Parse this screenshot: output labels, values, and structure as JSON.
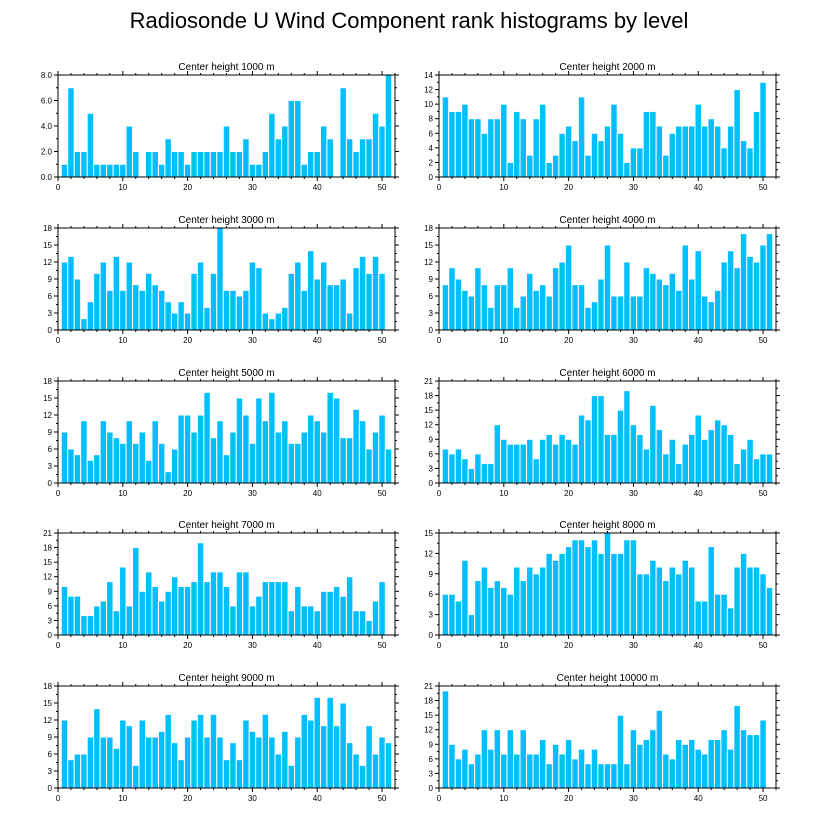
{
  "title": "Radiosonde U Wind Component rank histograms by level",
  "bar_color": "#00bfff",
  "bar_edge_color": "#ffffff",
  "axis_color": "#000000",
  "chart_data": [
    {
      "type": "bar",
      "title": "Center height 1000 m",
      "xlim": [
        0,
        52
      ],
      "xticks": [
        0,
        10,
        20,
        30,
        40,
        50
      ],
      "ylim": [
        0,
        8
      ],
      "yticks": [
        0,
        2,
        4,
        6,
        8
      ],
      "ytick_labels": [
        "0.0",
        "2.0",
        "4.0",
        "6.0",
        "8.0"
      ],
      "x": [
        1,
        2,
        3,
        4,
        5,
        6,
        7,
        8,
        9,
        10,
        11,
        12,
        13,
        14,
        15,
        16,
        17,
        18,
        19,
        20,
        21,
        22,
        23,
        24,
        25,
        26,
        27,
        28,
        29,
        30,
        31,
        32,
        33,
        34,
        35,
        36,
        37,
        38,
        39,
        40,
        41,
        42,
        43,
        44,
        45,
        46,
        47,
        48,
        49,
        50,
        51
      ],
      "values": [
        1,
        7,
        2,
        2,
        5,
        1,
        1,
        1,
        1,
        1,
        4,
        2,
        0,
        2,
        2,
        1,
        3,
        2,
        2,
        1,
        2,
        2,
        2,
        2,
        2,
        4,
        2,
        2,
        3,
        1,
        1,
        2,
        5,
        3,
        4,
        6,
        6,
        1,
        2,
        2,
        4,
        3,
        0,
        7,
        3,
        2,
        3,
        3,
        5,
        4,
        8
      ]
    },
    {
      "type": "bar",
      "title": "Center height 2000 m",
      "xlim": [
        0,
        52
      ],
      "xticks": [
        0,
        10,
        20,
        30,
        40,
        50
      ],
      "ylim": [
        0,
        14
      ],
      "yticks": [
        0,
        2,
        4,
        6,
        8,
        10,
        12,
        14
      ],
      "ytick_labels": [
        "0",
        "2",
        "4",
        "6",
        "8",
        "10",
        "12",
        "14"
      ],
      "x": [
        1,
        2,
        3,
        4,
        5,
        6,
        7,
        8,
        9,
        10,
        11,
        12,
        13,
        14,
        15,
        16,
        17,
        18,
        19,
        20,
        21,
        22,
        23,
        24,
        25,
        26,
        27,
        28,
        29,
        30,
        31,
        32,
        33,
        34,
        35,
        36,
        37,
        38,
        39,
        40,
        41,
        42,
        43,
        44,
        45,
        46,
        47,
        48,
        49,
        50,
        51
      ],
      "values": [
        11,
        9,
        9,
        10,
        8,
        8,
        6,
        8,
        8,
        10,
        2,
        9,
        8,
        3,
        8,
        10,
        2,
        3,
        6,
        7,
        5,
        11,
        3,
        6,
        5,
        7,
        10,
        6,
        2,
        4,
        4,
        9,
        9,
        7,
        3,
        6,
        7,
        7,
        7,
        10,
        7,
        8,
        7,
        4,
        7,
        12,
        5,
        4,
        9,
        13,
        0
      ]
    },
    {
      "type": "bar",
      "title": "Center height 3000 m",
      "xlim": [
        0,
        52
      ],
      "xticks": [
        0,
        10,
        20,
        30,
        40,
        50
      ],
      "ylim": [
        0,
        18
      ],
      "yticks": [
        0,
        3,
        6,
        9,
        12,
        15,
        18
      ],
      "ytick_labels": [
        "0",
        "3",
        "6",
        "9",
        "12",
        "15",
        "18"
      ],
      "x": [
        1,
        2,
        3,
        4,
        5,
        6,
        7,
        8,
        9,
        10,
        11,
        12,
        13,
        14,
        15,
        16,
        17,
        18,
        19,
        20,
        21,
        22,
        23,
        24,
        25,
        26,
        27,
        28,
        29,
        30,
        31,
        32,
        33,
        34,
        35,
        36,
        37,
        38,
        39,
        40,
        41,
        42,
        43,
        44,
        45,
        46,
        47,
        48,
        49,
        50,
        51
      ],
      "values": [
        12,
        13,
        9,
        2,
        5,
        10,
        12,
        7,
        13,
        7,
        12,
        8,
        7,
        10,
        8,
        7,
        5,
        3,
        5,
        3,
        10,
        12,
        4,
        10,
        18,
        7,
        7,
        6,
        7,
        12,
        11,
        3,
        2,
        3,
        4,
        10,
        12,
        7,
        14,
        9,
        12,
        8,
        8,
        9,
        3,
        11,
        13,
        10,
        13,
        10,
        0
      ]
    },
    {
      "type": "bar",
      "title": "Center height 4000 m",
      "xlim": [
        0,
        52
      ],
      "xticks": [
        0,
        10,
        20,
        30,
        40,
        50
      ],
      "ylim": [
        0,
        18
      ],
      "yticks": [
        0,
        3,
        6,
        9,
        12,
        15,
        18
      ],
      "ytick_labels": [
        "0",
        "3",
        "6",
        "9",
        "12",
        "15",
        "18"
      ],
      "x": [
        1,
        2,
        3,
        4,
        5,
        6,
        7,
        8,
        9,
        10,
        11,
        12,
        13,
        14,
        15,
        16,
        17,
        18,
        19,
        20,
        21,
        22,
        23,
        24,
        25,
        26,
        27,
        28,
        29,
        30,
        31,
        32,
        33,
        34,
        35,
        36,
        37,
        38,
        39,
        40,
        41,
        42,
        43,
        44,
        45,
        46,
        47,
        48,
        49,
        50,
        51
      ],
      "values": [
        8,
        11,
        9,
        7,
        6,
        11,
        8,
        4,
        8,
        8,
        11,
        4,
        6,
        10,
        7,
        8,
        6,
        11,
        12,
        15,
        8,
        8,
        4,
        5,
        9,
        15,
        6,
        6,
        12,
        6,
        6,
        11,
        10,
        9,
        8,
        10,
        7,
        15,
        9,
        14,
        6,
        5,
        7,
        12,
        14,
        11,
        17,
        13,
        12,
        15,
        17
      ]
    },
    {
      "type": "bar",
      "title": "Center height 5000 m",
      "xlim": [
        0,
        52
      ],
      "xticks": [
        0,
        10,
        20,
        30,
        40,
        50
      ],
      "ylim": [
        0,
        18
      ],
      "yticks": [
        0,
        3,
        6,
        9,
        12,
        15,
        18
      ],
      "ytick_labels": [
        "0",
        "3",
        "6",
        "9",
        "12",
        "15",
        "18"
      ],
      "x": [
        1,
        2,
        3,
        4,
        5,
        6,
        7,
        8,
        9,
        10,
        11,
        12,
        13,
        14,
        15,
        16,
        17,
        18,
        19,
        20,
        21,
        22,
        23,
        24,
        25,
        26,
        27,
        28,
        29,
        30,
        31,
        32,
        33,
        34,
        35,
        36,
        37,
        38,
        39,
        40,
        41,
        42,
        43,
        44,
        45,
        46,
        47,
        48,
        49,
        50,
        51
      ],
      "values": [
        9,
        6,
        5,
        11,
        4,
        5,
        11,
        9,
        8,
        7,
        11,
        7,
        9,
        4,
        11,
        7,
        2,
        6,
        12,
        12,
        9,
        12,
        16,
        8,
        11,
        5,
        9,
        15,
        12,
        7,
        15,
        11,
        16,
        9,
        11,
        7,
        7,
        9,
        12,
        11,
        9,
        16,
        15,
        8,
        8,
        13,
        11,
        6,
        9,
        12,
        6
      ]
    },
    {
      "type": "bar",
      "title": "Center height 6000 m",
      "xlim": [
        0,
        52
      ],
      "xticks": [
        0,
        10,
        20,
        30,
        40,
        50
      ],
      "ylim": [
        0,
        21
      ],
      "yticks": [
        0,
        3,
        6,
        9,
        12,
        15,
        18,
        21
      ],
      "ytick_labels": [
        "0",
        "3",
        "6",
        "9",
        "12",
        "15",
        "18",
        "21"
      ],
      "x": [
        1,
        2,
        3,
        4,
        5,
        6,
        7,
        8,
        9,
        10,
        11,
        12,
        13,
        14,
        15,
        16,
        17,
        18,
        19,
        20,
        21,
        22,
        23,
        24,
        25,
        26,
        27,
        28,
        29,
        30,
        31,
        32,
        33,
        34,
        35,
        36,
        37,
        38,
        39,
        40,
        41,
        42,
        43,
        44,
        45,
        46,
        47,
        48,
        49,
        50,
        51
      ],
      "values": [
        7,
        6,
        7,
        5,
        3,
        6,
        4,
        4,
        12,
        9,
        8,
        8,
        8,
        9,
        5,
        9,
        10,
        8,
        10,
        9,
        8,
        14,
        13,
        18,
        18,
        10,
        10,
        15,
        19,
        12,
        10,
        7,
        16,
        11,
        6,
        9,
        4,
        8,
        10,
        14,
        9,
        11,
        13,
        12,
        10,
        4,
        7,
        9,
        5,
        6,
        6
      ]
    },
    {
      "type": "bar",
      "title": "Center height 7000 m",
      "xlim": [
        0,
        52
      ],
      "xticks": [
        0,
        10,
        20,
        30,
        40,
        50
      ],
      "ylim": [
        0,
        21
      ],
      "yticks": [
        0,
        3,
        6,
        9,
        12,
        15,
        18,
        21
      ],
      "ytick_labels": [
        "0",
        "3",
        "6",
        "9",
        "12",
        "15",
        "18",
        "21"
      ],
      "x": [
        1,
        2,
        3,
        4,
        5,
        6,
        7,
        8,
        9,
        10,
        11,
        12,
        13,
        14,
        15,
        16,
        17,
        18,
        19,
        20,
        21,
        22,
        23,
        24,
        25,
        26,
        27,
        28,
        29,
        30,
        31,
        32,
        33,
        34,
        35,
        36,
        37,
        38,
        39,
        40,
        41,
        42,
        43,
        44,
        45,
        46,
        47,
        48,
        49,
        50,
        51
      ],
      "values": [
        10,
        8,
        8,
        4,
        4,
        6,
        7,
        11,
        5,
        14,
        6,
        18,
        9,
        13,
        10,
        7,
        9,
        12,
        10,
        10,
        11,
        19,
        11,
        13,
        13,
        10,
        6,
        13,
        13,
        6,
        8,
        11,
        11,
        11,
        11,
        5,
        10,
        6,
        6,
        5,
        9,
        9,
        10,
        8,
        12,
        5,
        5,
        3,
        7,
        11,
        0
      ]
    },
    {
      "type": "bar",
      "title": "Center height 8000 m",
      "xlim": [
        0,
        52
      ],
      "xticks": [
        0,
        10,
        20,
        30,
        40,
        50
      ],
      "ylim": [
        0,
        15
      ],
      "yticks": [
        0,
        3,
        6,
        9,
        12,
        15
      ],
      "ytick_labels": [
        "0",
        "3",
        "6",
        "9",
        "12",
        "15"
      ],
      "x": [
        1,
        2,
        3,
        4,
        5,
        6,
        7,
        8,
        9,
        10,
        11,
        12,
        13,
        14,
        15,
        16,
        17,
        18,
        19,
        20,
        21,
        22,
        23,
        24,
        25,
        26,
        27,
        28,
        29,
        30,
        31,
        32,
        33,
        34,
        35,
        36,
        37,
        38,
        39,
        40,
        41,
        42,
        43,
        44,
        45,
        46,
        47,
        48,
        49,
        50,
        51
      ],
      "values": [
        6,
        6,
        5,
        11,
        3,
        8,
        10,
        7,
        8,
        7,
        6,
        10,
        8,
        10,
        9,
        10,
        12,
        11,
        12,
        13,
        14,
        14,
        13,
        14,
        12,
        15,
        12,
        12,
        14,
        14,
        9,
        9,
        11,
        10,
        8,
        10,
        9,
        11,
        10,
        5,
        5,
        13,
        6,
        6,
        4,
        10,
        12,
        10,
        10,
        9,
        7
      ]
    },
    {
      "type": "bar",
      "title": "Center height 9000 m",
      "xlim": [
        0,
        52
      ],
      "xticks": [
        0,
        10,
        20,
        30,
        40,
        50
      ],
      "ylim": [
        0,
        18
      ],
      "yticks": [
        0,
        3,
        6,
        9,
        12,
        15,
        18
      ],
      "ytick_labels": [
        "0",
        "3",
        "6",
        "9",
        "12",
        "15",
        "18"
      ],
      "x": [
        1,
        2,
        3,
        4,
        5,
        6,
        7,
        8,
        9,
        10,
        11,
        12,
        13,
        14,
        15,
        16,
        17,
        18,
        19,
        20,
        21,
        22,
        23,
        24,
        25,
        26,
        27,
        28,
        29,
        30,
        31,
        32,
        33,
        34,
        35,
        36,
        37,
        38,
        39,
        40,
        41,
        42,
        43,
        44,
        45,
        46,
        47,
        48,
        49,
        50,
        51
      ],
      "values": [
        12,
        5,
        6,
        6,
        9,
        14,
        9,
        9,
        7,
        12,
        11,
        4,
        12,
        9,
        9,
        10,
        13,
        8,
        5,
        9,
        12,
        13,
        9,
        13,
        9,
        5,
        8,
        5,
        12,
        10,
        9,
        13,
        9,
        6,
        10,
        4,
        9,
        13,
        12,
        16,
        11,
        16,
        11,
        15,
        8,
        6,
        4,
        11,
        6,
        9,
        8
      ]
    },
    {
      "type": "bar",
      "title": "Center height 10000 m",
      "xlim": [
        0,
        52
      ],
      "xticks": [
        0,
        10,
        20,
        30,
        40,
        50
      ],
      "ylim": [
        0,
        21
      ],
      "yticks": [
        0,
        3,
        6,
        9,
        12,
        15,
        18,
        21
      ],
      "ytick_labels": [
        "0",
        "3",
        "6",
        "9",
        "12",
        "15",
        "18",
        "21"
      ],
      "x": [
        1,
        2,
        3,
        4,
        5,
        6,
        7,
        8,
        9,
        10,
        11,
        12,
        13,
        14,
        15,
        16,
        17,
        18,
        19,
        20,
        21,
        22,
        23,
        24,
        25,
        26,
        27,
        28,
        29,
        30,
        31,
        32,
        33,
        34,
        35,
        36,
        37,
        38,
        39,
        40,
        41,
        42,
        43,
        44,
        45,
        46,
        47,
        48,
        49,
        50,
        51
      ],
      "values": [
        20,
        9,
        6,
        8,
        5,
        7,
        12,
        8,
        12,
        7,
        12,
        7,
        12,
        7,
        7,
        10,
        5,
        9,
        7,
        10,
        6,
        8,
        5,
        8,
        5,
        5,
        5,
        15,
        5,
        12,
        9,
        10,
        12,
        16,
        7,
        6,
        10,
        9,
        10,
        8,
        7,
        10,
        10,
        12,
        8,
        17,
        12,
        11,
        11,
        14,
        0
      ]
    }
  ]
}
